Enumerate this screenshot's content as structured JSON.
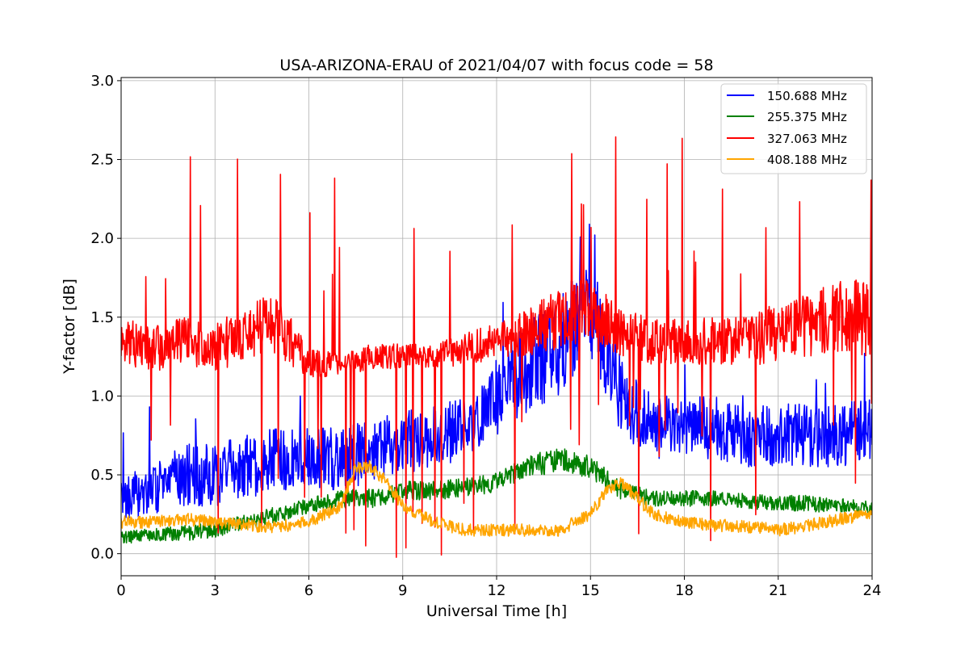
{
  "chart_data": {
    "type": "line",
    "title": "USA-ARIZONA-ERAU of 2021/04/07 with focus code = 58",
    "xlabel": "Universal Time [h]",
    "ylabel": "Y-factor [dB]",
    "xlim": [
      0,
      24
    ],
    "ylim": [
      -0.14,
      3.02
    ],
    "xticks": [
      0,
      3,
      6,
      9,
      12,
      15,
      18,
      21,
      24
    ],
    "xtick_labels": [
      "0",
      "3",
      "6",
      "9",
      "12",
      "15",
      "18",
      "21",
      "24"
    ],
    "yticks": [
      0.0,
      0.5,
      1.0,
      1.5,
      2.0,
      2.5,
      3.0
    ],
    "ytick_labels": [
      "0.0",
      "0.5",
      "1.0",
      "1.5",
      "2.0",
      "2.5",
      "3.0"
    ],
    "grid": true,
    "legend_position": "top-right",
    "series": [
      {
        "name": "150.688 MHz",
        "color": "#0000ff",
        "x": [
          0,
          1,
          2,
          3,
          4,
          5,
          6,
          7,
          8,
          9,
          10,
          11,
          12,
          13,
          14,
          15,
          16,
          17,
          18,
          19,
          20,
          21,
          22,
          23,
          24
        ],
        "y": [
          0.35,
          0.4,
          0.5,
          0.5,
          0.55,
          0.6,
          0.6,
          0.6,
          0.65,
          0.7,
          0.75,
          0.8,
          1.0,
          1.2,
          1.3,
          1.6,
          1.0,
          0.8,
          0.8,
          0.8,
          0.75,
          0.75,
          0.75,
          0.75,
          0.8
        ],
        "spread": [
          0.15,
          0.15,
          0.2,
          0.2,
          0.2,
          0.2,
          0.2,
          0.2,
          0.2,
          0.2,
          0.2,
          0.2,
          0.25,
          0.3,
          0.3,
          0.35,
          0.25,
          0.2,
          0.2,
          0.2,
          0.2,
          0.2,
          0.2,
          0.2,
          0.2
        ]
      },
      {
        "name": "255.375 MHz",
        "color": "#008000",
        "x": [
          0,
          1,
          2,
          3,
          4,
          5,
          6,
          7,
          8,
          9,
          10,
          11,
          12,
          13,
          14,
          15,
          16,
          17,
          18,
          19,
          20,
          21,
          22,
          23,
          24
        ],
        "y": [
          0.1,
          0.12,
          0.13,
          0.15,
          0.2,
          0.25,
          0.3,
          0.35,
          0.35,
          0.4,
          0.4,
          0.42,
          0.45,
          0.55,
          0.6,
          0.55,
          0.4,
          0.35,
          0.35,
          0.35,
          0.33,
          0.32,
          0.32,
          0.3,
          0.28
        ],
        "spread": [
          0.04,
          0.04,
          0.05,
          0.05,
          0.05,
          0.05,
          0.05,
          0.06,
          0.06,
          0.06,
          0.06,
          0.06,
          0.06,
          0.07,
          0.08,
          0.07,
          0.06,
          0.05,
          0.05,
          0.05,
          0.05,
          0.05,
          0.05,
          0.05,
          0.05
        ]
      },
      {
        "name": "327.063 MHz",
        "color": "#ff0000",
        "x": [
          0,
          1,
          2,
          3,
          4,
          5,
          6,
          7,
          8,
          9,
          10,
          11,
          12,
          13,
          14,
          15,
          16,
          17,
          18,
          19,
          20,
          21,
          22,
          23,
          24
        ],
        "y": [
          1.35,
          1.3,
          1.35,
          1.3,
          1.4,
          1.45,
          1.2,
          1.2,
          1.25,
          1.25,
          1.25,
          1.3,
          1.35,
          1.4,
          1.5,
          1.55,
          1.4,
          1.35,
          1.35,
          1.35,
          1.35,
          1.4,
          1.45,
          1.5,
          1.5
        ],
        "spread": [
          0.15,
          0.15,
          0.15,
          0.15,
          0.2,
          0.2,
          0.1,
          0.08,
          0.08,
          0.08,
          0.08,
          0.1,
          0.12,
          0.15,
          0.2,
          0.2,
          0.15,
          0.15,
          0.15,
          0.15,
          0.15,
          0.2,
          0.2,
          0.25,
          0.25
        ]
      },
      {
        "name": "408.188 MHz",
        "color": "#ffa500",
        "x": [
          0,
          1,
          2,
          3,
          4,
          5,
          6,
          7,
          7.5,
          8,
          8.5,
          9,
          10,
          11,
          12,
          13,
          14,
          15,
          15.5,
          16,
          16.5,
          17,
          18,
          19,
          20,
          21,
          22,
          23,
          24
        ],
        "y": [
          0.2,
          0.2,
          0.22,
          0.2,
          0.18,
          0.17,
          0.2,
          0.3,
          0.55,
          0.55,
          0.45,
          0.3,
          0.2,
          0.15,
          0.15,
          0.15,
          0.15,
          0.25,
          0.4,
          0.45,
          0.35,
          0.25,
          0.2,
          0.18,
          0.17,
          0.15,
          0.18,
          0.22,
          0.25
        ]
      }
    ]
  }
}
